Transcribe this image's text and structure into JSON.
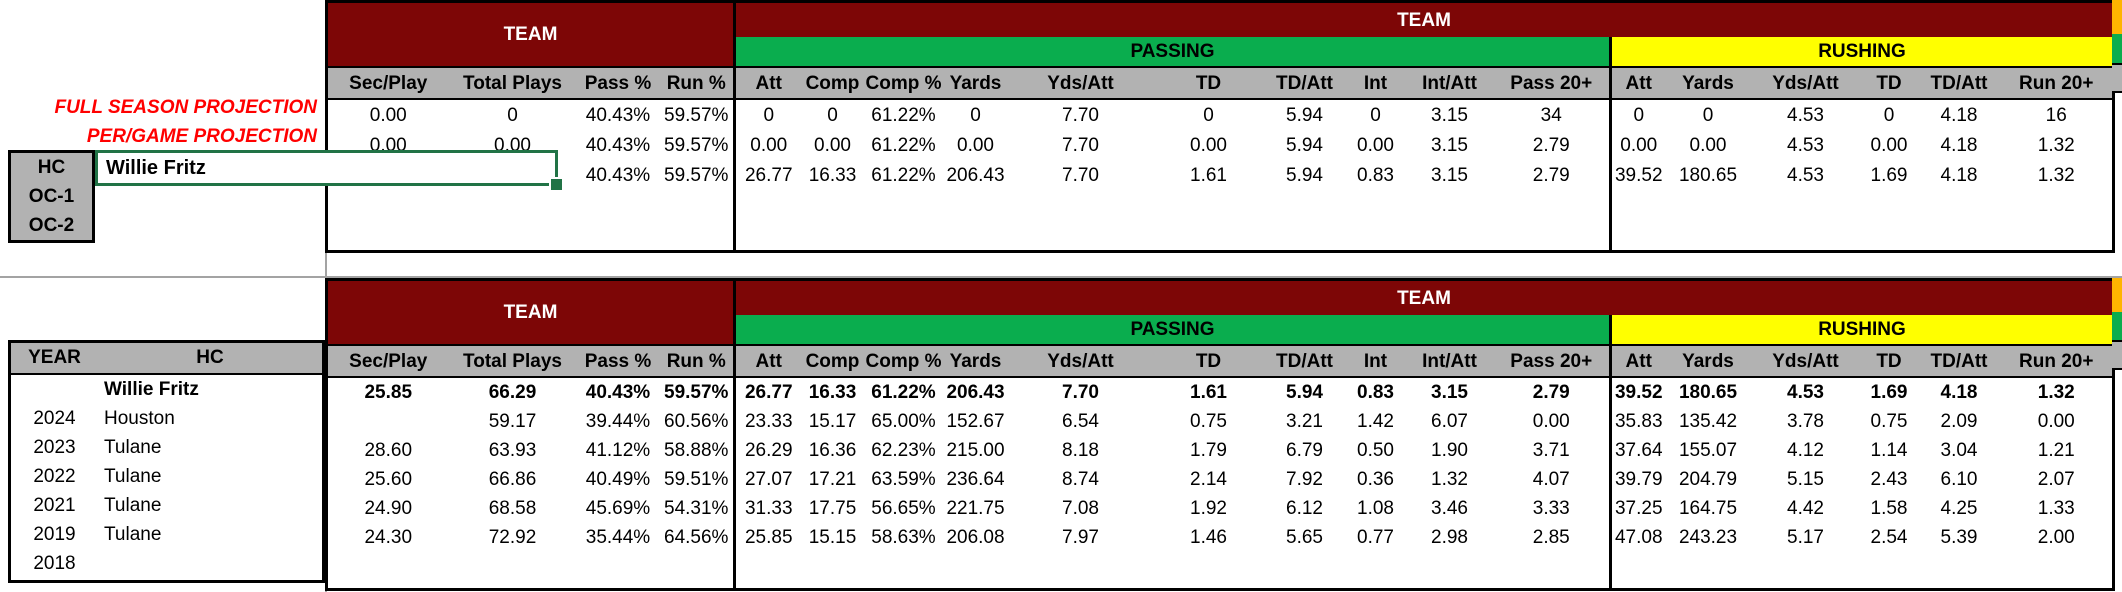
{
  "colors": {
    "dark_red": "#7d0606",
    "green": "#0aad4e",
    "yellow": "#ffff00",
    "orange": "#ffb400",
    "header_gray": "#b2b2b2",
    "selection_green": "#217346",
    "label_red": "#ff0000",
    "gridline_gray": "#a3a3a3"
  },
  "columns": {
    "group_headers": {
      "team": "TEAM",
      "passing": "PASSING",
      "rushing": "RUSHING"
    },
    "team_cols": [
      "Sec/Play",
      "Total Plays",
      "Pass %",
      "Run %"
    ],
    "passing_cols": [
      "Att",
      "Comp",
      "Comp %",
      "Yards",
      "Yds/Att",
      "TD",
      "TD/Att",
      "Int",
      "Int/Att",
      "Pass 20+"
    ],
    "rushing_cols": [
      "Att",
      "Yards",
      "Yds/Att",
      "TD",
      "TD/Att",
      "Run 20+"
    ]
  },
  "top_section": {
    "row_labels": [
      "FULL SEASON PROJECTION",
      "PER/GAME PROJECTION"
    ],
    "role_labels": [
      "HC",
      "OC-1",
      "OC-2"
    ],
    "selected_coach": "Willie Fritz",
    "rows": [
      {
        "values": [
          "0.00",
          "0",
          "40.43%",
          "59.57%",
          "0",
          "0",
          "61.22%",
          "0",
          "7.70",
          "0",
          "5.94",
          "0",
          "3.15",
          "34",
          "0",
          "0",
          "4.53",
          "0",
          "4.18",
          "16"
        ]
      },
      {
        "values": [
          "0.00",
          "0.00",
          "40.43%",
          "59.57%",
          "0.00",
          "0.00",
          "61.22%",
          "0.00",
          "7.70",
          "0.00",
          "5.94",
          "0.00",
          "3.15",
          "2.79",
          "0.00",
          "0.00",
          "4.53",
          "0.00",
          "4.18",
          "1.32"
        ]
      },
      {
        "values": [
          "",
          "",
          "40.43%",
          "59.57%",
          "26.77",
          "16.33",
          "61.22%",
          "206.43",
          "7.70",
          "1.61",
          "5.94",
          "0.83",
          "3.15",
          "2.79",
          "39.52",
          "180.65",
          "4.53",
          "1.69",
          "4.18",
          "1.32"
        ]
      },
      {
        "values": [
          "",
          "",
          "",
          "",
          "",
          "",
          "",
          "",
          "",
          "",
          "",
          "",
          "",
          "",
          "",
          "",
          "",
          "",
          "",
          ""
        ]
      },
      {
        "values": [
          "",
          "",
          "",
          "",
          "",
          "",
          "",
          "",
          "",
          "",
          "",
          "",
          "",
          "",
          "",
          "",
          "",
          "",
          "",
          ""
        ]
      }
    ]
  },
  "bottom_section": {
    "year_header": "YEAR",
    "hc_header": "HC",
    "rows": [
      {
        "year": "",
        "hc": "Willie Fritz",
        "bold": true,
        "values": [
          "25.85",
          "66.29",
          "40.43%",
          "59.57%",
          "26.77",
          "16.33",
          "61.22%",
          "206.43",
          "7.70",
          "1.61",
          "5.94",
          "0.83",
          "3.15",
          "2.79",
          "39.52",
          "180.65",
          "4.53",
          "1.69",
          "4.18",
          "1.32"
        ]
      },
      {
        "year": "2024",
        "hc": "Houston",
        "bold": false,
        "values": [
          "",
          "59.17",
          "39.44%",
          "60.56%",
          "23.33",
          "15.17",
          "65.00%",
          "152.67",
          "6.54",
          "0.75",
          "3.21",
          "1.42",
          "6.07",
          "0.00",
          "35.83",
          "135.42",
          "3.78",
          "0.75",
          "2.09",
          "0.00"
        ]
      },
      {
        "year": "2023",
        "hc": "Tulane",
        "bold": false,
        "values": [
          "28.60",
          "63.93",
          "41.12%",
          "58.88%",
          "26.29",
          "16.36",
          "62.23%",
          "215.00",
          "8.18",
          "1.79",
          "6.79",
          "0.50",
          "1.90",
          "3.71",
          "37.64",
          "155.07",
          "4.12",
          "1.14",
          "3.04",
          "1.21"
        ]
      },
      {
        "year": "2022",
        "hc": "Tulane",
        "bold": false,
        "values": [
          "25.60",
          "66.86",
          "40.49%",
          "59.51%",
          "27.07",
          "17.21",
          "63.59%",
          "236.64",
          "8.74",
          "2.14",
          "7.92",
          "0.36",
          "1.32",
          "4.07",
          "39.79",
          "204.79",
          "5.15",
          "2.43",
          "6.10",
          "2.07"
        ]
      },
      {
        "year": "2021",
        "hc": "Tulane",
        "bold": false,
        "values": [
          "24.90",
          "68.58",
          "45.69%",
          "54.31%",
          "31.33",
          "17.75",
          "56.65%",
          "221.75",
          "7.08",
          "1.92",
          "6.12",
          "1.08",
          "3.46",
          "3.33",
          "37.25",
          "164.75",
          "4.42",
          "1.58",
          "4.25",
          "1.33"
        ]
      },
      {
        "year": "2019",
        "hc": "Tulane",
        "bold": false,
        "values": [
          "24.30",
          "72.92",
          "35.44%",
          "64.56%",
          "25.85",
          "15.15",
          "58.63%",
          "206.08",
          "7.97",
          "1.46",
          "5.65",
          "0.77",
          "2.98",
          "2.85",
          "47.08",
          "243.23",
          "5.17",
          "2.54",
          "5.39",
          "2.00"
        ]
      },
      {
        "year": "2018",
        "hc": "",
        "bold": false,
        "values": [
          "",
          "",
          "",
          "",
          "",
          "",
          "",
          "",
          "",
          "",
          "",
          "",
          "",
          "",
          "",
          "",
          "",
          "",
          "",
          ""
        ]
      }
    ]
  }
}
